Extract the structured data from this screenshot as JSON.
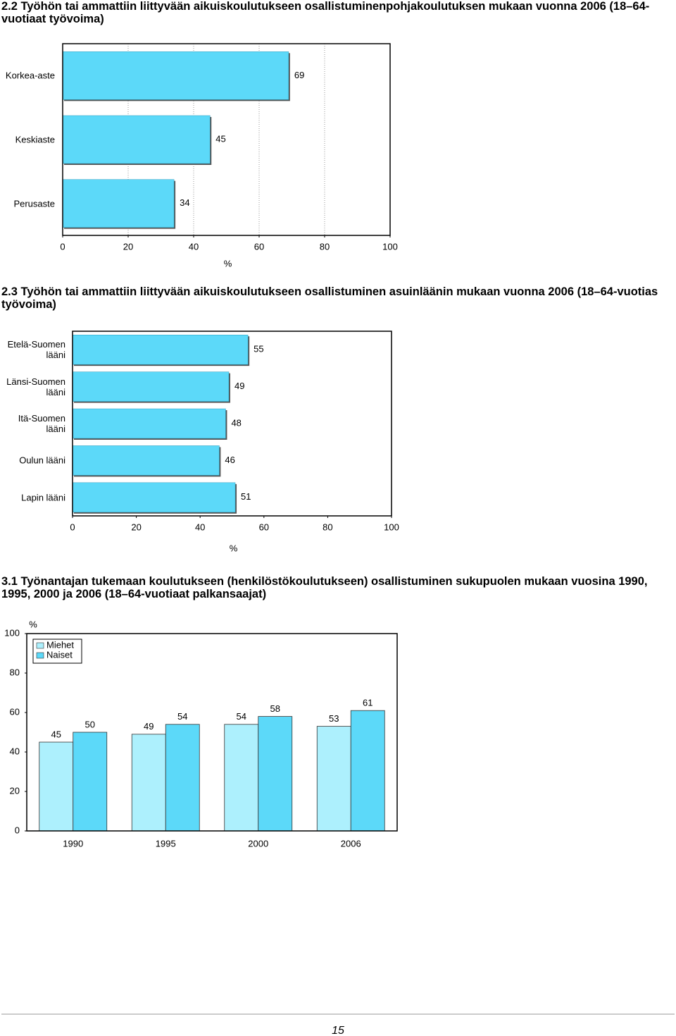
{
  "chart_data": [
    {
      "type": "barh",
      "title": "2.2 Työhön tai ammattiin liittyvään aikuiskoulutukseen osallistuminenpohjakoulutuksen mukaan vuonna 2006 (18–64-vuotiaat työvoima)",
      "categories": [
        "Korkea-aste",
        "Keskiaste",
        "Perusaste"
      ],
      "values": [
        69,
        45,
        34
      ],
      "color": "#5cd9f9",
      "xlim": [
        0,
        100
      ],
      "xticks": [
        0,
        20,
        40,
        60,
        80,
        100
      ],
      "xlabel": "%",
      "grid": true
    },
    {
      "type": "barh",
      "title": "2.3 Työhön tai ammattiin liittyvään aikuiskoulutukseen osallistuminen asuinläänin mukaan vuonna 2006 (18–64-vuotias työvoima)",
      "categories": [
        "Etelä-Suomen lääni",
        "Länsi-Suomen lääni",
        "Itä-Suomen lääni",
        "Oulun lääni",
        "Lapin lääni"
      ],
      "values": [
        55,
        49,
        48,
        46,
        51
      ],
      "color": "#5cd9f9",
      "xlim": [
        0,
        100
      ],
      "xticks": [
        0,
        20,
        40,
        60,
        80,
        100
      ],
      "xlabel": "%",
      "grid": false
    },
    {
      "type": "bar",
      "title": "3.1 Työnantajan tukemaan koulutukseen (henkilöstökoulutukseen) osallistuminen sukupuolen mukaan vuosina 1990, 1995, 2000 ja 2006 (18–64-vuotiaat palkansaajat)",
      "categories": [
        "1990",
        "1995",
        "2000",
        "2006"
      ],
      "series": [
        {
          "name": "Miehet",
          "color": "#adf0fd",
          "values": [
            45,
            49,
            54,
            53
          ]
        },
        {
          "name": "Naiset",
          "color": "#5cd9f9",
          "values": [
            50,
            54,
            58,
            61
          ]
        }
      ],
      "ylim": [
        0,
        100
      ],
      "yticks": [
        0,
        20,
        40,
        60,
        80,
        100
      ],
      "ylabel": "%",
      "legend": "top-left",
      "grid": false
    }
  ],
  "page_number": "15"
}
